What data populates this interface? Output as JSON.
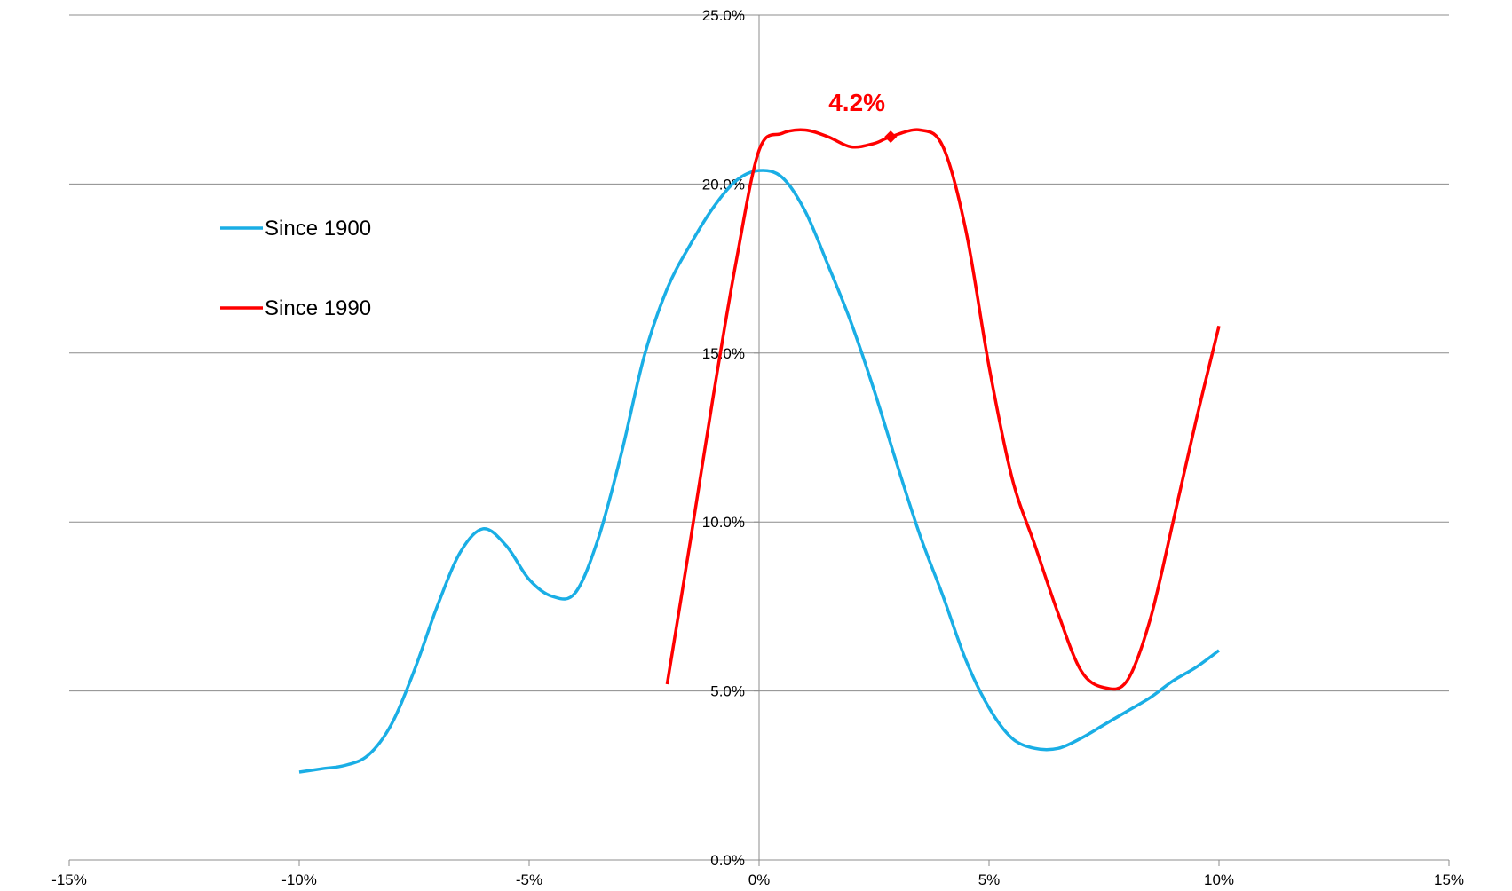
{
  "chart_data": {
    "type": "line",
    "title": "",
    "xlabel": "",
    "ylabel": "",
    "xlim": [
      -15,
      15
    ],
    "ylim": [
      0,
      25
    ],
    "x_ticks": [
      {
        "value": -15,
        "label": "-15%"
      },
      {
        "value": -10,
        "label": "-10%"
      },
      {
        "value": -5,
        "label": "-5%"
      },
      {
        "value": 0,
        "label": "0%"
      },
      {
        "value": 5,
        "label": "5%"
      },
      {
        "value": 10,
        "label": "10%"
      },
      {
        "value": 15,
        "label": "15%"
      }
    ],
    "y_ticks": [
      {
        "value": 0,
        "label": "0.0%"
      },
      {
        "value": 5,
        "label": "5.0%"
      },
      {
        "value": 10,
        "label": "10.0%"
      },
      {
        "value": 15,
        "label": "15.0%"
      },
      {
        "value": 20,
        "label": "20.0%"
      },
      {
        "value": 25,
        "label": "25.0%"
      }
    ],
    "grid": "horizontal",
    "legend_position": "left",
    "series": [
      {
        "name": "Since 1900",
        "color": "#1aaee5",
        "x": [
          -10,
          -9.5,
          -9,
          -8.5,
          -8,
          -7.5,
          -7,
          -6.5,
          -6,
          -5.5,
          -5,
          -4.5,
          -4,
          -3.5,
          -3,
          -2.5,
          -2,
          -1.5,
          -1,
          -0.5,
          0,
          0.5,
          1,
          1.5,
          2,
          2.5,
          3,
          3.5,
          4,
          4.5,
          5,
          5.5,
          6,
          6.5,
          7,
          7.5,
          8,
          8.5,
          9,
          9.5,
          10
        ],
        "y": [
          2.6,
          2.7,
          2.8,
          3.1,
          4.0,
          5.6,
          7.5,
          9.1,
          9.8,
          9.3,
          8.3,
          7.8,
          7.9,
          9.5,
          12.0,
          14.9,
          16.9,
          18.2,
          19.3,
          20.1,
          20.4,
          20.2,
          19.2,
          17.6,
          15.9,
          13.9,
          11.7,
          9.6,
          7.8,
          5.9,
          4.5,
          3.6,
          3.3,
          3.3,
          3.6,
          4.0,
          4.4,
          4.8,
          5.3,
          5.7,
          6.2
        ]
      },
      {
        "name": "Since 1990",
        "color": "#ff0000",
        "x": [
          -2,
          -1.5,
          -1,
          -0.5,
          0,
          0.5,
          1,
          1.5,
          2,
          2.5,
          2.86,
          3.5,
          4,
          4.5,
          5,
          5.5,
          6,
          6.5,
          7,
          7.5,
          8,
          8.5,
          9,
          9.5,
          10
        ],
        "y": [
          5.2,
          9.4,
          13.7,
          17.7,
          21.0,
          21.5,
          21.6,
          21.4,
          21.1,
          21.2,
          21.4,
          21.6,
          21.1,
          18.6,
          14.6,
          11.3,
          9.3,
          7.3,
          5.6,
          5.1,
          5.3,
          7.1,
          10.0,
          13.0,
          15.8
        ]
      }
    ],
    "annotations": [
      {
        "series": "Since 1990",
        "x": 2.86,
        "y": 21.4,
        "text": "4.2%",
        "color": "#ff0000"
      }
    ]
  }
}
